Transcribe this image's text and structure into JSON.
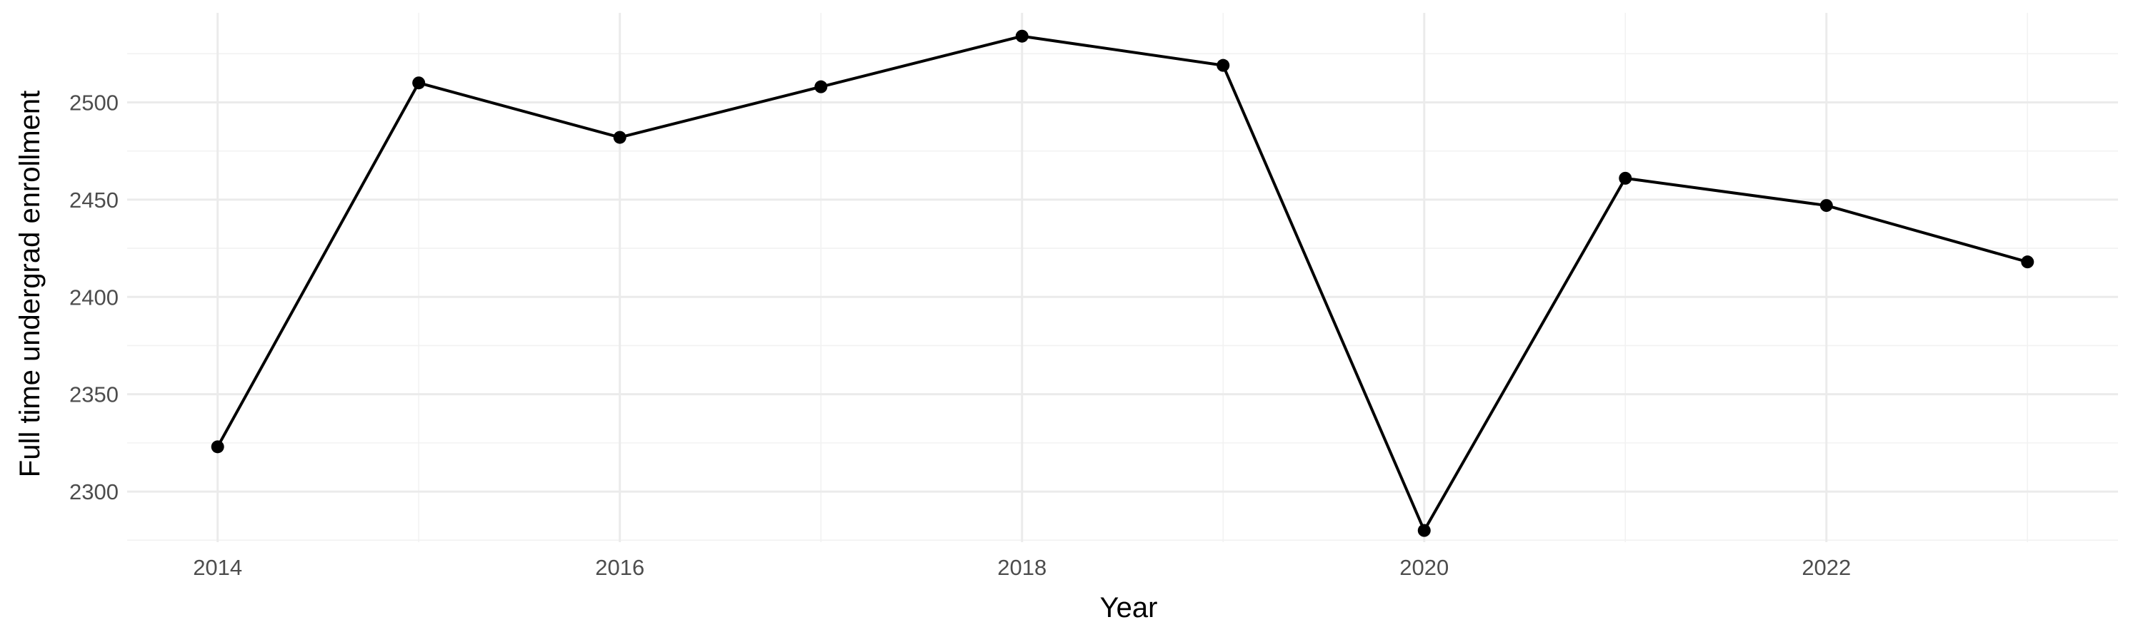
{
  "chart_data": {
    "type": "line",
    "title": "",
    "xlabel": "Year",
    "ylabel": "Full time undergrad enrollment",
    "x": [
      2014,
      2015,
      2016,
      2017,
      2018,
      2019,
      2020,
      2021,
      2022,
      2023
    ],
    "series": [
      {
        "values": [
          2323,
          2510,
          2482,
          2508,
          2534,
          2519,
          2280,
          2461,
          2447,
          2418
        ]
      }
    ],
    "xlim": [
      2013.55,
      2023.45
    ],
    "ylim": [
      2274,
      2546
    ],
    "x_ticks": [
      2014,
      2016,
      2018,
      2020,
      2022
    ],
    "x_tick_labels": [
      "2014",
      "2016",
      "2018",
      "2020",
      "2022"
    ],
    "y_ticks": [
      2300,
      2350,
      2400,
      2450,
      2500
    ],
    "y_tick_labels": [
      "2300",
      "2350",
      "2400",
      "2450",
      "2500"
    ],
    "grid": true,
    "legend": "none",
    "colors": {
      "line": "#000000",
      "point": "#000000",
      "grid_major": "#ebebeb",
      "grid_minor": "#f2f2f2",
      "tick_text": "#4d4d4d"
    }
  }
}
